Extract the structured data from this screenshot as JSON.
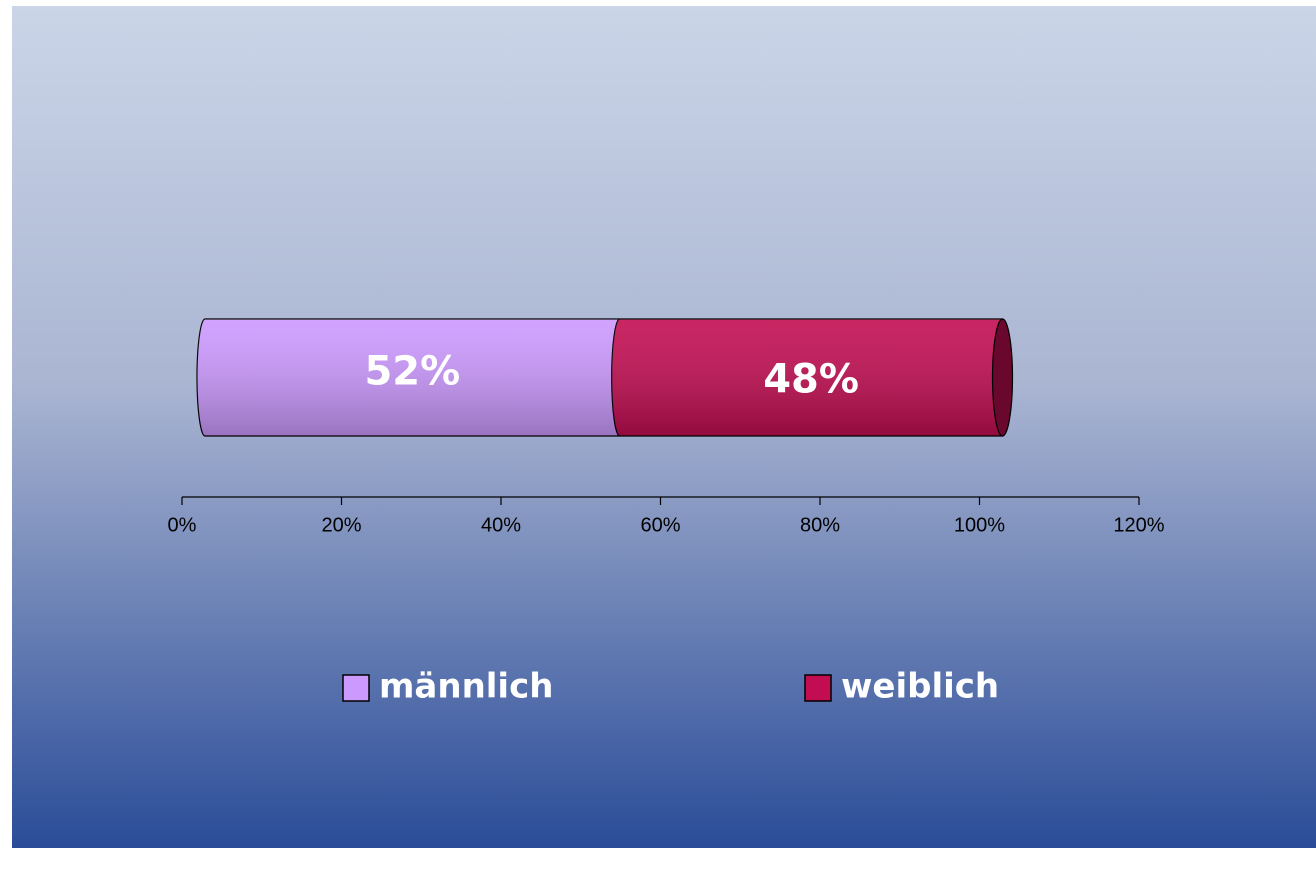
{
  "chart_data": {
    "type": "stacked_bar",
    "orientation": "horizontal",
    "categories": [
      null
    ],
    "series": [
      {
        "name": "männlich",
        "color": "#cc99ff",
        "values": [
          52
        ],
        "value_labels": [
          "52%"
        ]
      },
      {
        "name": "weiblich",
        "color": "#c20d52",
        "values": [
          48
        ],
        "value_labels": [
          "48%"
        ]
      }
    ],
    "xlim": [
      0,
      120
    ],
    "xticks": [
      {
        "value": 0,
        "label": "0%"
      },
      {
        "value": 20,
        "label": "20%"
      },
      {
        "value": 40,
        "label": "40%"
      },
      {
        "value": 60,
        "label": "60%"
      },
      {
        "value": 80,
        "label": "80%"
      },
      {
        "value": 100,
        "label": "100%"
      },
      {
        "value": 120,
        "label": "120%"
      }
    ],
    "legend": "bottom"
  }
}
